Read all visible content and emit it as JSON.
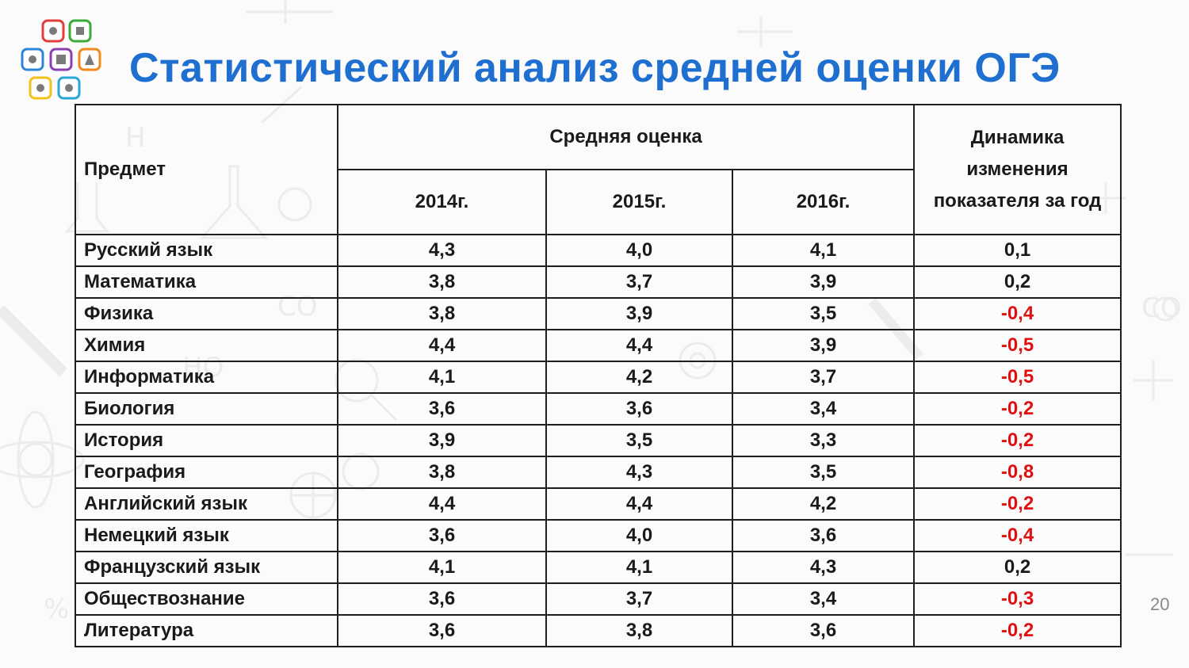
{
  "slide": {
    "title": "Статистический анализ средней оценки ОГЭ",
    "page_number": "20"
  },
  "table": {
    "header": {
      "subject": "Предмет",
      "group": "Средняя оценка",
      "years": [
        "2014г.",
        "2015г.",
        "2016г."
      ],
      "dynamics": [
        "Динамика",
        "изменения",
        "показателя за год"
      ]
    },
    "rows": [
      {
        "subject": "Русский язык",
        "y2014": "4,3",
        "y2015": "4,0",
        "y2016": "4,1",
        "dynamics": "0,1"
      },
      {
        "subject": "Математика",
        "y2014": "3,8",
        "y2015": "3,7",
        "y2016": "3,9",
        "dynamics": "0,2"
      },
      {
        "subject": "Физика",
        "y2014": "3,8",
        "y2015": "3,9",
        "y2016": "3,5",
        "dynamics": "-0,4"
      },
      {
        "subject": "Химия",
        "y2014": "4,4",
        "y2015": "4,4",
        "y2016": "3,9",
        "dynamics": "-0,5"
      },
      {
        "subject": "Информатика",
        "y2014": "4,1",
        "y2015": "4,2",
        "y2016": "3,7",
        "dynamics": "-0,5"
      },
      {
        "subject": "Биология",
        "y2014": "3,6",
        "y2015": "3,6",
        "y2016": "3,4",
        "dynamics": "-0,2"
      },
      {
        "subject": "История",
        "y2014": "3,9",
        "y2015": "3,5",
        "y2016": "3,3",
        "dynamics": "-0,2"
      },
      {
        "subject": "География",
        "y2014": "3,8",
        "y2015": "4,3",
        "y2016": "3,5",
        "dynamics": "-0,8"
      },
      {
        "subject": "Английский язык",
        "y2014": "4,4",
        "y2015": "4,4",
        "y2016": "4,2",
        "dynamics": "-0,2"
      },
      {
        "subject": "Немецкий язык",
        "y2014": "3,6",
        "y2015": "4,0",
        "y2016": "3,6",
        "dynamics": "-0,4"
      },
      {
        "subject": "Французский язык",
        "y2014": "4,1",
        "y2015": "4,1",
        "y2016": "4,3",
        "dynamics": "0,2"
      },
      {
        "subject": "Обществознание",
        "y2014": "3,6",
        "y2015": "3,7",
        "y2016": "3,4",
        "dynamics": "-0,3"
      },
      {
        "subject": "Литература",
        "y2014": "3,6",
        "y2015": "3,8",
        "y2016": "3,6",
        "dynamics": "-0,2"
      }
    ]
  },
  "colors": {
    "title": "#1f6fd0",
    "negative": "#e01010",
    "text": "#1a1a1a",
    "border": "#1e1e1e",
    "page_number": "#8a8a8a"
  }
}
